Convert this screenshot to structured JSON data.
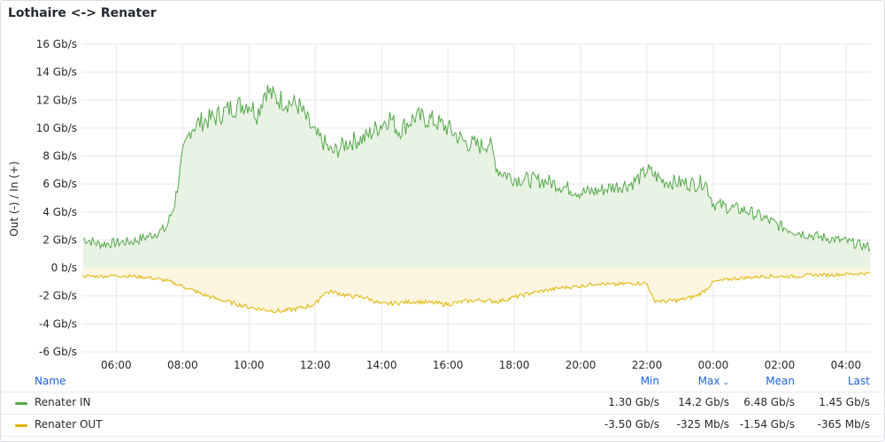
{
  "panel": {
    "title": "Lothaire <-> Renater"
  },
  "chart_data": {
    "type": "area",
    "title": "Lothaire <-> Renater",
    "ylabel": "Out (-) / In (+)",
    "xlabel": "",
    "y_unit": "Gb/s",
    "ylim": [
      -6,
      16
    ],
    "yticks": [
      16,
      14,
      12,
      10,
      8,
      6,
      4,
      2,
      0,
      -2,
      -4,
      -6
    ],
    "ytick_labels": [
      "16 Gb/s",
      "14 Gb/s",
      "12 Gb/s",
      "10 Gb/s",
      "8 Gb/s",
      "6 Gb/s",
      "4 Gb/s",
      "2 Gb/s",
      "0 b/s",
      "-2 Gb/s",
      "-4 Gb/s",
      "-6 Gb/s"
    ],
    "x_unit": "hours",
    "xlim": [
      4.95,
      28.75
    ],
    "xticks": [
      6,
      8,
      10,
      12,
      14,
      16,
      18,
      20,
      22,
      24,
      26,
      28
    ],
    "xtick_labels": [
      "06:00",
      "08:00",
      "10:00",
      "12:00",
      "14:00",
      "16:00",
      "18:00",
      "20:00",
      "22:00",
      "00:00",
      "02:00",
      "04:00"
    ],
    "grid": true,
    "legend_position": "bottom",
    "series": [
      {
        "name": "Renater IN",
        "color": "#56a64b",
        "fill": "#e5f2e1",
        "x": [
          5.0,
          5.5,
          6.0,
          6.5,
          7.0,
          7.5,
          7.75,
          8.0,
          8.25,
          8.5,
          9.0,
          9.5,
          10.0,
          10.25,
          10.5,
          10.75,
          11.0,
          11.5,
          12.0,
          12.25,
          12.5,
          13.0,
          13.5,
          14.0,
          14.25,
          14.5,
          15.0,
          15.5,
          16.0,
          16.5,
          17.0,
          17.25,
          17.5,
          18.0,
          18.5,
          19.0,
          19.5,
          20.0,
          20.5,
          21.0,
          21.5,
          21.8,
          22.0,
          22.5,
          23.0,
          23.5,
          23.75,
          24.0,
          24.5,
          25.0,
          25.5,
          26.0,
          26.5,
          27.0,
          27.5,
          28.0,
          28.5,
          28.75
        ],
        "y": [
          2.1,
          1.7,
          1.8,
          1.9,
          2.3,
          2.8,
          4.5,
          8.0,
          10.0,
          10.4,
          10.8,
          11.5,
          11.8,
          11.0,
          12.8,
          12.2,
          12.0,
          11.6,
          9.5,
          9.0,
          8.2,
          9.0,
          9.3,
          10.3,
          10.8,
          9.8,
          10.8,
          10.6,
          10.0,
          9.0,
          8.7,
          9.0,
          7.0,
          6.4,
          6.3,
          6.2,
          5.8,
          5.4,
          5.5,
          5.8,
          6.0,
          6.5,
          7.0,
          6.2,
          6.1,
          6.0,
          6.2,
          4.6,
          4.3,
          4.1,
          3.6,
          3.0,
          2.6,
          2.3,
          2.1,
          1.9,
          1.6,
          1.5
        ]
      },
      {
        "name": "Renater OUT",
        "color": "#e0b400",
        "fill": "#fdf4dc",
        "x": [
          5.0,
          5.5,
          6.0,
          6.5,
          7.0,
          7.5,
          8.0,
          8.5,
          9.0,
          9.5,
          10.0,
          10.5,
          11.0,
          11.5,
          12.0,
          12.25,
          12.5,
          13.0,
          13.5,
          14.0,
          14.5,
          15.0,
          15.5,
          16.0,
          16.5,
          17.0,
          17.5,
          18.0,
          18.5,
          19.0,
          19.5,
          20.0,
          20.5,
          21.0,
          21.5,
          22.0,
          22.2,
          22.5,
          23.0,
          23.5,
          23.8,
          24.0,
          24.5,
          25.0,
          25.5,
          26.0,
          26.5,
          27.0,
          27.5,
          28.0,
          28.5,
          28.75
        ],
        "y": [
          -0.6,
          -0.6,
          -0.55,
          -0.6,
          -0.7,
          -0.9,
          -1.3,
          -1.8,
          -2.2,
          -2.5,
          -2.8,
          -3.0,
          -3.1,
          -2.9,
          -2.6,
          -1.8,
          -1.7,
          -2.0,
          -2.1,
          -2.6,
          -2.5,
          -2.4,
          -2.5,
          -2.6,
          -2.4,
          -2.3,
          -2.4,
          -2.1,
          -1.8,
          -1.6,
          -1.4,
          -1.3,
          -1.1,
          -1.2,
          -1.1,
          -1.1,
          -2.3,
          -2.4,
          -2.3,
          -2.0,
          -1.5,
          -1.0,
          -0.8,
          -0.7,
          -0.6,
          -0.6,
          -0.6,
          -0.5,
          -0.5,
          -0.45,
          -0.4,
          -0.4
        ]
      }
    ]
  },
  "legend": {
    "headers": {
      "name": "Name",
      "min": "Min",
      "max": "Max",
      "mean": "Mean",
      "last": "Last"
    },
    "rows": [
      {
        "name": "Renater IN",
        "color": "#56a64b",
        "min": "1.30 Gb/s",
        "max": "14.2 Gb/s",
        "mean": "6.48 Gb/s",
        "last": "1.45 Gb/s"
      },
      {
        "name": "Renater OUT",
        "color": "#e0b400",
        "min": "-3.50 Gb/s",
        "max": "-325 Mb/s",
        "mean": "-1.54 Gb/s",
        "last": "-365 Mb/s"
      }
    ]
  }
}
